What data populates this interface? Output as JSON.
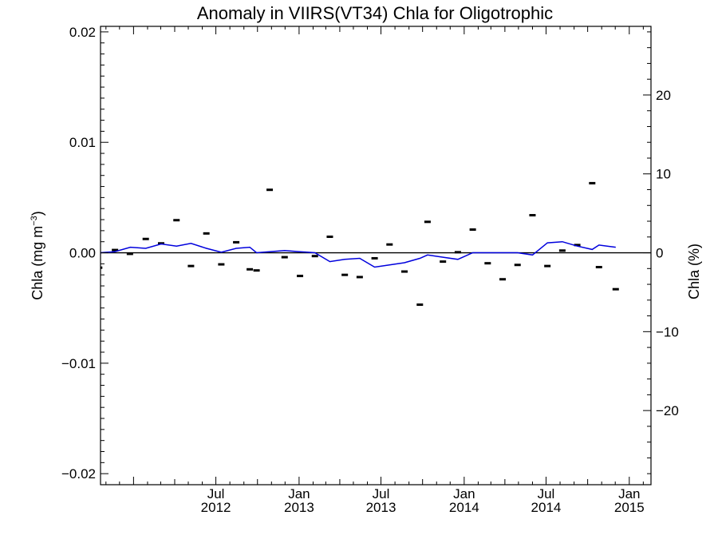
{
  "chart_data": {
    "type": "line",
    "title": "Anomaly in VIIRS(VT34) Chla for Oligotrophic",
    "ylabel_left": "Chla (mg m",
    "ylabel_left_sup": "−3",
    "ylabel_left_close": ")",
    "ylabel_right": "Chla (%)",
    "left_axis": {
      "ylim": [
        -0.021,
        0.0205
      ],
      "ticks": [
        -0.02,
        -0.01,
        0.0,
        0.01,
        0.02
      ],
      "tick_labels": [
        "−0.02",
        "−0.01",
        "0.00",
        "0.01",
        "0.02"
      ]
    },
    "right_axis": {
      "ylim": [
        -29.4,
        28.7
      ],
      "ticks": [
        -20,
        -10,
        0,
        10,
        20
      ],
      "tick_labels": [
        "−20",
        "−10",
        "0",
        "10",
        "20"
      ]
    },
    "x_axis": {
      "xlim": [
        "2011-10-20",
        "2015-02-18"
      ],
      "major_ticks": [
        {
          "date": "2012-07-01",
          "month": "Jul",
          "year": "2012"
        },
        {
          "date": "2013-01-01",
          "month": "Jan",
          "year": "2013"
        },
        {
          "date": "2013-07-01",
          "month": "Jul",
          "year": "2013"
        },
        {
          "date": "2014-01-01",
          "month": "Jan",
          "year": "2014"
        },
        {
          "date": "2014-07-01",
          "month": "Jul",
          "year": "2014"
        },
        {
          "date": "2015-01-01",
          "month": "Jan",
          "year": "2015"
        }
      ],
      "minor_ticks": [
        "2012-01-01",
        "2012-04-01",
        "2012-10-01",
        "2013-04-01",
        "2013-10-01",
        "2014-04-01",
        "2014-10-01"
      ]
    },
    "series": [
      {
        "color": "#000000",
        "marker": "dash",
        "points": [
          {
            "date": "2011-10-17",
            "value": -0.00135
          },
          {
            "date": "2011-11-21",
            "value": 0.00025
          },
          {
            "date": "2011-12-24",
            "value": -0.0001
          },
          {
            "date": "2012-01-28",
            "value": 0.00125
          },
          {
            "date": "2012-03-02",
            "value": 0.00085
          },
          {
            "date": "2012-04-05",
            "value": 0.00295
          },
          {
            "date": "2012-05-07",
            "value": -0.0012
          },
          {
            "date": "2012-06-10",
            "value": 0.00175
          },
          {
            "date": "2012-07-13",
            "value": -0.00105
          },
          {
            "date": "2012-08-15",
            "value": 0.00095
          },
          {
            "date": "2012-09-14",
            "value": -0.0015
          },
          {
            "date": "2012-09-29",
            "value": -0.0016
          },
          {
            "date": "2012-10-28",
            "value": 0.0057
          },
          {
            "date": "2012-11-30",
            "value": -0.0004
          },
          {
            "date": "2013-01-03",
            "value": -0.0021
          },
          {
            "date": "2013-02-05",
            "value": -0.0003
          },
          {
            "date": "2013-03-10",
            "value": 0.00145
          },
          {
            "date": "2013-04-12",
            "value": -0.002
          },
          {
            "date": "2013-05-15",
            "value": -0.0022
          },
          {
            "date": "2013-06-17",
            "value": -0.0005
          },
          {
            "date": "2013-07-20",
            "value": 0.00075
          },
          {
            "date": "2013-08-22",
            "value": -0.0017
          },
          {
            "date": "2013-09-25",
            "value": -0.0047
          },
          {
            "date": "2013-10-12",
            "value": 0.0028
          },
          {
            "date": "2013-11-15",
            "value": -0.0008
          },
          {
            "date": "2013-12-18",
            "value": 5e-05
          },
          {
            "date": "2014-01-20",
            "value": 0.0021
          },
          {
            "date": "2014-02-22",
            "value": -0.00095
          },
          {
            "date": "2014-03-27",
            "value": -0.0024
          },
          {
            "date": "2014-04-29",
            "value": -0.0011
          },
          {
            "date": "2014-06-01",
            "value": 0.0034
          },
          {
            "date": "2014-07-04",
            "value": -0.0012
          },
          {
            "date": "2014-08-06",
            "value": 0.0002
          },
          {
            "date": "2014-09-08",
            "value": 0.0007
          },
          {
            "date": "2014-10-11",
            "value": 0.0063
          },
          {
            "date": "2014-10-26",
            "value": -0.0013
          },
          {
            "date": "2014-12-02",
            "value": -0.0033
          }
        ]
      },
      {
        "color": "#0000dd",
        "marker": "line",
        "points": [
          {
            "date": "2011-10-20",
            "value": 0.0
          },
          {
            "date": "2011-11-20",
            "value": 0.0001
          },
          {
            "date": "2011-12-25",
            "value": 0.0005
          },
          {
            "date": "2012-01-28",
            "value": 0.0004
          },
          {
            "date": "2012-03-02",
            "value": 0.0008
          },
          {
            "date": "2012-04-05",
            "value": 0.0006
          },
          {
            "date": "2012-05-07",
            "value": 0.00085
          },
          {
            "date": "2012-06-10",
            "value": 0.0004
          },
          {
            "date": "2012-07-13",
            "value": 5e-05
          },
          {
            "date": "2012-08-15",
            "value": 0.0004
          },
          {
            "date": "2012-09-14",
            "value": 0.0005
          },
          {
            "date": "2012-09-29",
            "value": 0.0
          },
          {
            "date": "2012-11-30",
            "value": 0.0002
          },
          {
            "date": "2013-01-03",
            "value": 0.0001
          },
          {
            "date": "2013-02-05",
            "value": 0.0
          },
          {
            "date": "2013-03-10",
            "value": -0.0008
          },
          {
            "date": "2013-04-12",
            "value": -0.0006
          },
          {
            "date": "2013-05-15",
            "value": -0.0005
          },
          {
            "date": "2013-06-17",
            "value": -0.0013
          },
          {
            "date": "2013-07-20",
            "value": -0.0011
          },
          {
            "date": "2013-08-22",
            "value": -0.0009
          },
          {
            "date": "2013-09-25",
            "value": -0.0005
          },
          {
            "date": "2013-10-12",
            "value": -0.0002
          },
          {
            "date": "2013-11-15",
            "value": -0.0004
          },
          {
            "date": "2013-12-18",
            "value": -0.0006
          },
          {
            "date": "2014-01-20",
            "value": 0.0
          },
          {
            "date": "2014-02-22",
            "value": 0.0
          },
          {
            "date": "2014-03-27",
            "value": 0.0
          },
          {
            "date": "2014-04-29",
            "value": 0.0
          },
          {
            "date": "2014-06-01",
            "value": -0.0002
          },
          {
            "date": "2014-07-04",
            "value": 0.0009
          },
          {
            "date": "2014-08-06",
            "value": 0.001
          },
          {
            "date": "2014-09-08",
            "value": 0.0006
          },
          {
            "date": "2014-10-11",
            "value": 0.0003
          },
          {
            "date": "2014-10-26",
            "value": 0.0007
          },
          {
            "date": "2014-12-02",
            "value": 0.0005
          }
        ]
      }
    ],
    "zero_line": true,
    "grid": false,
    "legend": "none"
  }
}
